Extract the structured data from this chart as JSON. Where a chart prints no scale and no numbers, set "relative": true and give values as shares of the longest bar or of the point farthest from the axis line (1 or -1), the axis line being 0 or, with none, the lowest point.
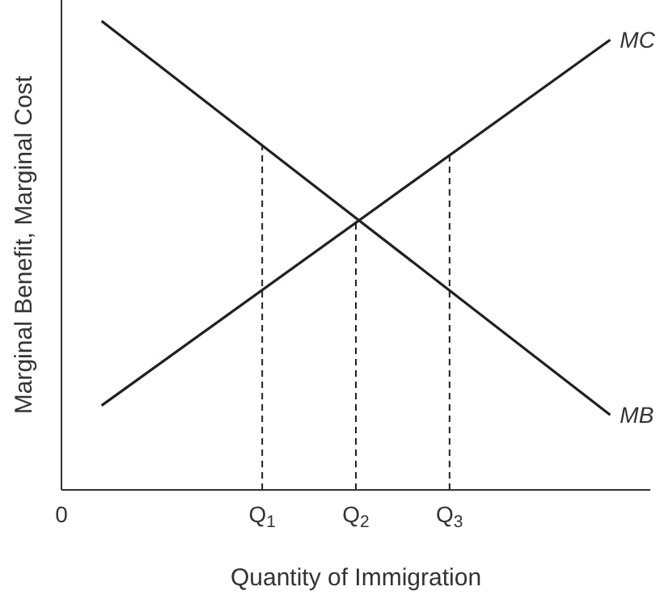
{
  "chart_data": {
    "type": "line",
    "relative": true,
    "xlabel": "Quantity of Immigration",
    "ylabel": "Marginal Benefit, Marginal Cost",
    "categories": [
      "0",
      null,
      null,
      null,
      null,
      null,
      null,
      null,
      null,
      null,
      null,
      null,
      null,
      null,
      null,
      "Q$_{1}$",
      null,
      null,
      null,
      null,
      null,
      null,
      "Q$_{2}$",
      null,
      null,
      null,
      null,
      null,
      null,
      "Q$_{3}$",
      null,
      null,
      null,
      null,
      null,
      null,
      null,
      null,
      null,
      null,
      null,
      null,
      null,
      null,
      null
    ],
    "series": [
      {
        "name": "MB",
        "color": "#231f20",
        "values": [
          null,
          null,
          null,
          1,
          null,
          null,
          null,
          null,
          null,
          null,
          null,
          null,
          null,
          null,
          null,
          null,
          null,
          null,
          null,
          null,
          null,
          null,
          null,
          null,
          null,
          null,
          null,
          null,
          null,
          null,
          null,
          null,
          null,
          null,
          null,
          null,
          null,
          null,
          null,
          null,
          null,
          0.16,
          null,
          null,
          null
        ]
      },
      {
        "name": "MC",
        "color": "#231f20",
        "values": [
          null,
          null,
          null,
          0.18,
          null,
          null,
          null,
          null,
          null,
          null,
          null,
          null,
          null,
          null,
          null,
          null,
          null,
          null,
          null,
          null,
          null,
          null,
          null,
          null,
          null,
          null,
          null,
          null,
          null,
          null,
          null,
          null,
          null,
          null,
          null,
          null,
          null,
          null,
          null,
          null,
          null,
          0.96,
          null,
          null,
          null
        ]
      }
    ],
    "ref_lines": [
      {
        "axis": "x",
        "value": "Q$_{1}$",
        "color": "#231f20",
        "line_style": "dashed"
      },
      {
        "axis": "x",
        "value": "Q$_{2}$",
        "color": "#231f20",
        "line_style": "dashed"
      },
      {
        "axis": "x",
        "value": "Q$_{3}$",
        "color": "#231f20",
        "line_style": "dashed"
      }
    ]
  }
}
